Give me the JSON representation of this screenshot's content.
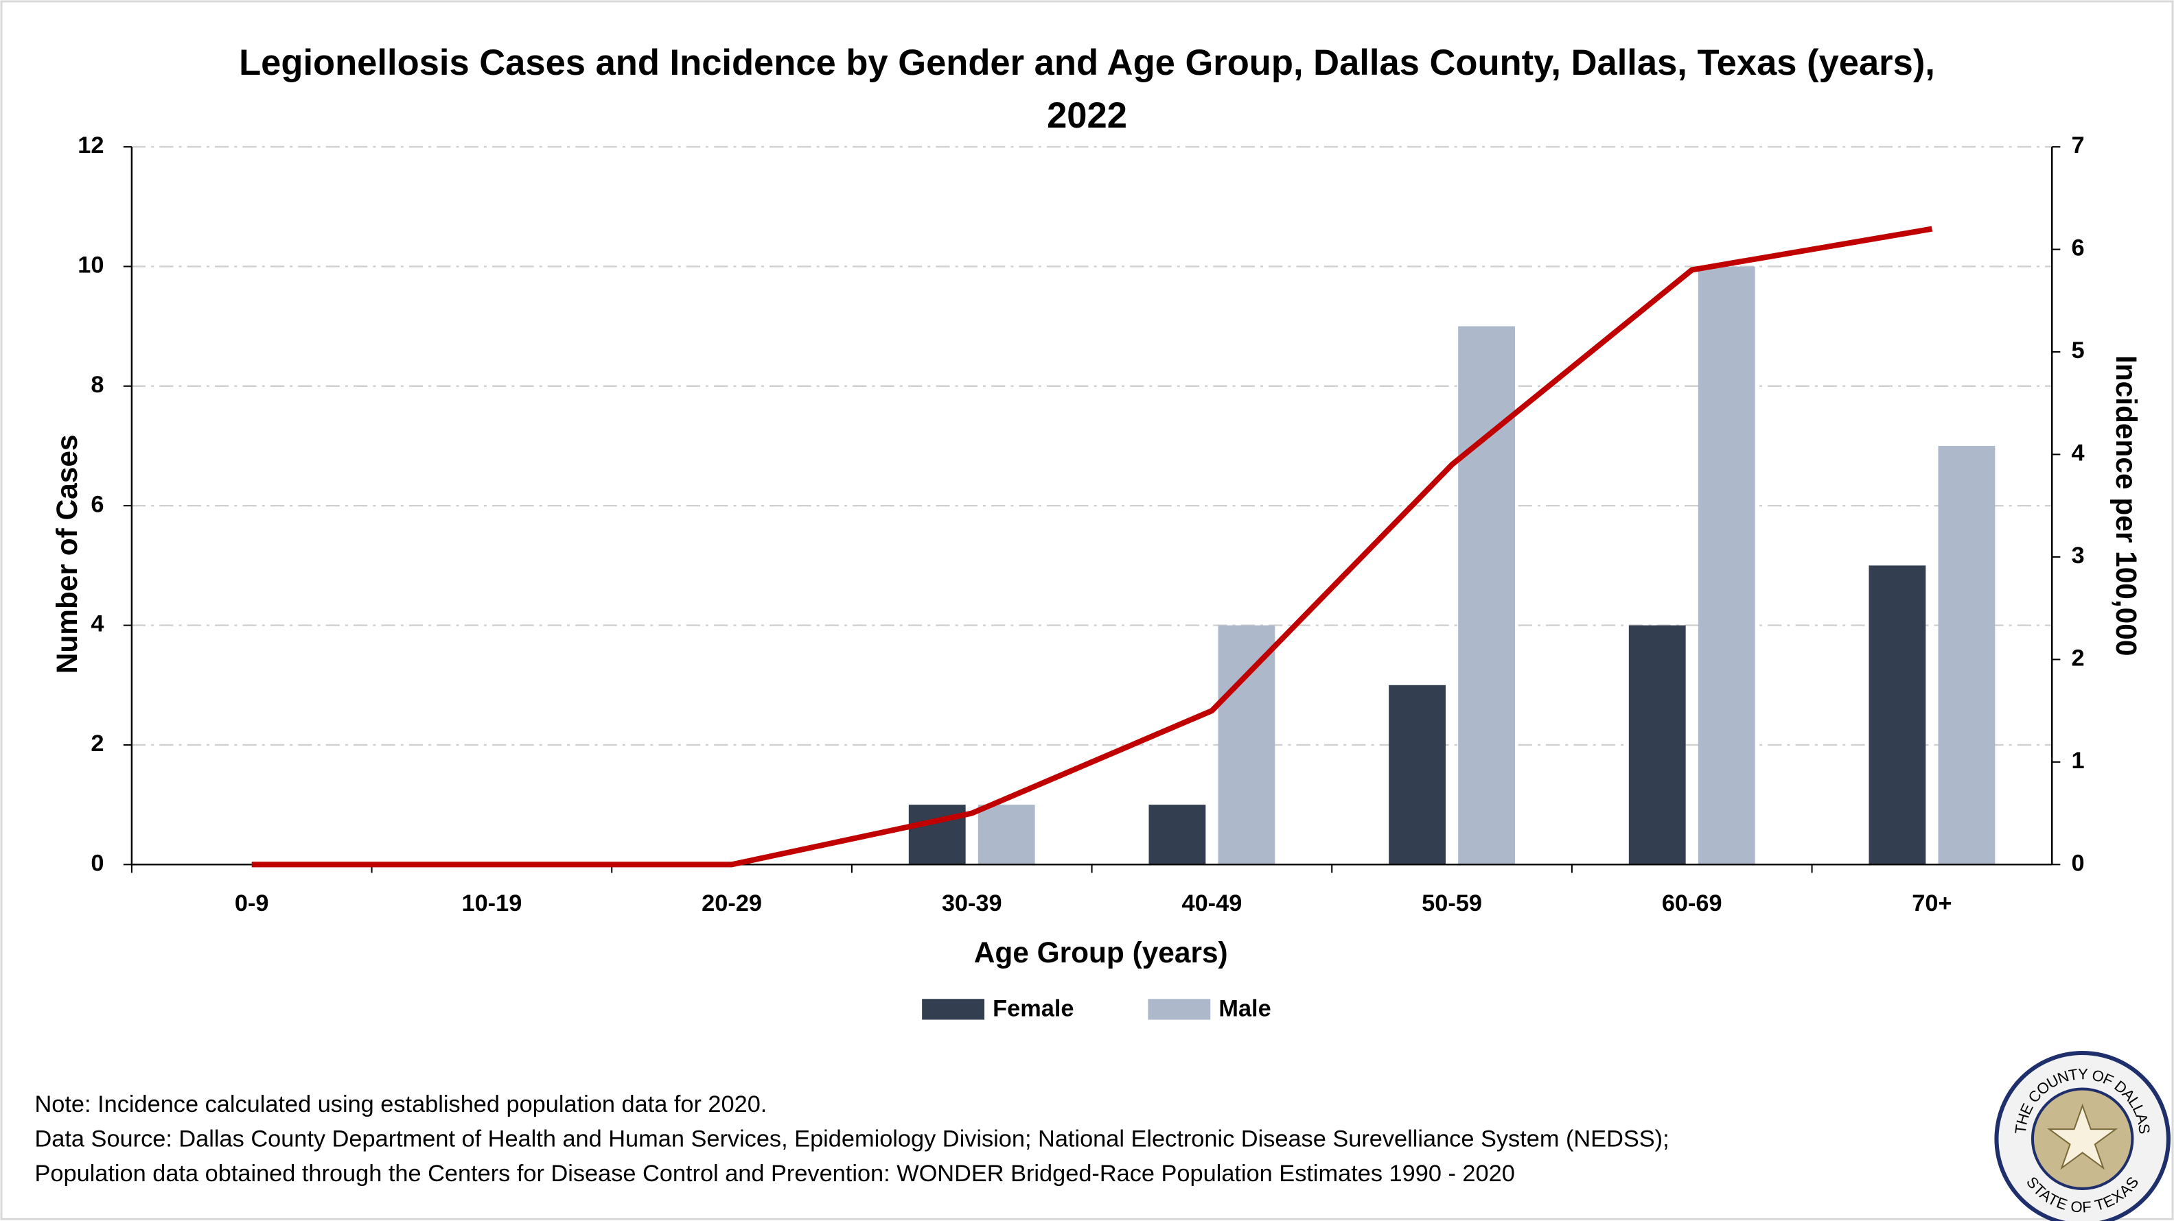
{
  "chart_data": {
    "type": "bar_line",
    "title": "Legionellosis Cases and Incidence by Gender and Age Group, Dallas County, Dallas, Texas (years), 2022",
    "x_label": "Age Group (years)",
    "y_label": "Number of Cases",
    "y2_label": "Incidence per 100,000",
    "categories": [
      "0-9",
      "10-19",
      "20-29",
      "30-39",
      "40-49",
      "50-59",
      "60-69",
      "70+"
    ],
    "series": [
      {
        "name": "Female",
        "type": "bar",
        "color": "#333f50",
        "values": [
          0,
          0,
          0,
          1,
          1,
          3,
          4,
          5
        ]
      },
      {
        "name": "Male",
        "type": "bar",
        "color": "#adb9ca",
        "values": [
          0,
          0,
          0,
          1,
          4,
          9,
          10,
          7
        ]
      },
      {
        "type": "line",
        "axis": "y2",
        "color": "#c00000",
        "values": [
          0,
          0,
          0,
          0.5,
          1.5,
          3.9,
          5.8,
          6.2
        ]
      }
    ],
    "ylim": [
      0,
      12
    ],
    "yticks": [
      0,
      2,
      4,
      6,
      8,
      10,
      12
    ],
    "y2lim": [
      0,
      7
    ],
    "y2ticks": [
      0,
      1,
      2,
      3,
      4,
      5,
      6,
      7
    ],
    "y2_color": "#c00000",
    "grid": true,
    "legend": "bottom",
    "notes": [
      "Note: Incidence calculated using established population data for 2020.",
      "Data Source: Dallas County Department of Health and Human Services, Epidemiology Division; National Electronic Disease Surevelliance System (NEDSS);",
      "Population data obtained through the Centers for Disease Control and Prevention: WONDER Bridged-Race Population Estimates 1990 - 2020"
    ],
    "seal_top": "THE COUNTY OF DALLAS",
    "seal_bottom": "STATE OF TEXAS"
  }
}
